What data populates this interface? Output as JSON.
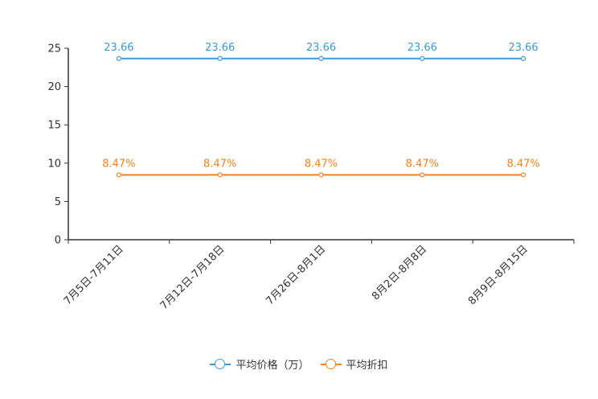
{
  "chart_data": {
    "type": "line",
    "categories": [
      "7月5日-7月11日",
      "7月12日-7月18日",
      "7月26日-8月1日",
      "8月2日-8月8日",
      "8月9日-8月15日"
    ],
    "series": [
      {
        "name": "平均价格（万）",
        "values": [
          23.66,
          23.66,
          23.66,
          23.66,
          23.66
        ],
        "labels": [
          "23.66",
          "23.66",
          "23.66",
          "23.66",
          "23.66"
        ],
        "color": "#3a9ad9"
      },
      {
        "name": "平均折扣",
        "values": [
          8.47,
          8.47,
          8.47,
          8.47,
          8.47
        ],
        "labels": [
          "8.47%",
          "8.47%",
          "8.47%",
          "8.47%",
          "8.47%"
        ],
        "color": "#f58220"
      }
    ],
    "yticks": [
      0,
      5,
      10,
      15,
      20,
      25
    ],
    "ylim": [
      0,
      25
    ],
    "xlabel": "",
    "ylabel": "",
    "legend_position": "bottom-center",
    "grid": false
  }
}
